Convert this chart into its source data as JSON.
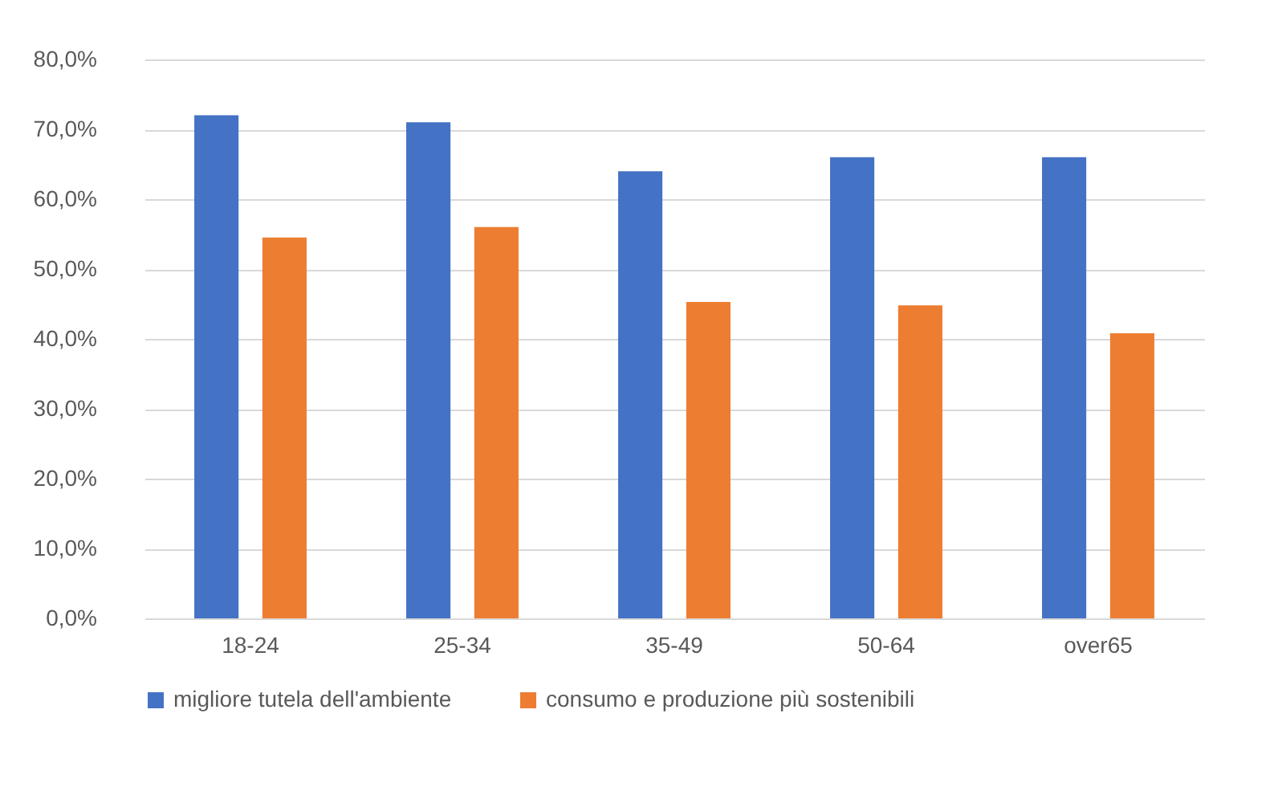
{
  "chart_data": {
    "type": "bar",
    "categories": [
      "18-24",
      "25-34",
      "35-49",
      "50-64",
      "over65"
    ],
    "series": [
      {
        "name": "migliore tutela dell'ambiente",
        "color": "#4472c4",
        "values": [
          72,
          71,
          64,
          66,
          66
        ]
      },
      {
        "name": "consumo e produzione più sostenibili",
        "color": "#ed7d31",
        "values": [
          54.5,
          56,
          45.3,
          44.8,
          40.8
        ]
      }
    ],
    "ylim": [
      0,
      80
    ],
    "yticks": [
      {
        "value": 0,
        "label": "0,0%"
      },
      {
        "value": 10,
        "label": "10,0%"
      },
      {
        "value": 20,
        "label": "20,0%"
      },
      {
        "value": 30,
        "label": "30,0%"
      },
      {
        "value": 40,
        "label": "40,0%"
      },
      {
        "value": 50,
        "label": "50,0%"
      },
      {
        "value": 60,
        "label": "60,0%"
      },
      {
        "value": 70,
        "label": "70,0%"
      },
      {
        "value": 80,
        "label": "80,0%"
      }
    ],
    "grid": "y",
    "legend": "bottom"
  }
}
